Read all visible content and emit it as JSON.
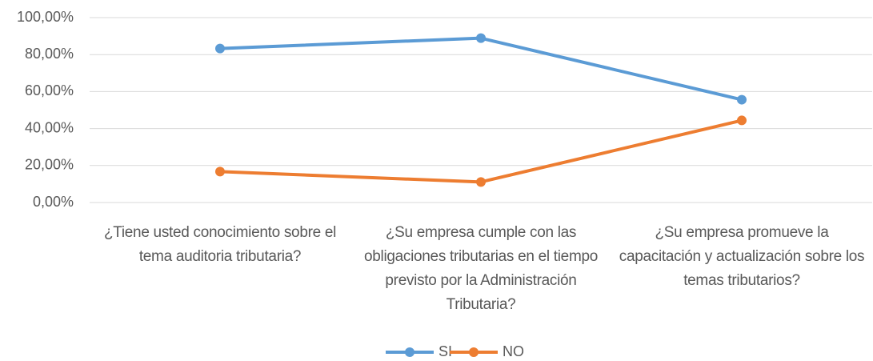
{
  "chart_data": {
    "type": "line",
    "categories": [
      "¿Tiene usted conocimiento sobre el tema auditoria tributaria?",
      "¿Su empresa cumple con las obligaciones tributarias en el tiempo previsto por la Administración Tributaria?",
      "¿Su empresa promueve la capacitación y actualización sobre los temas tributarios?"
    ],
    "series": [
      {
        "name": "SI",
        "color": "#5b9bd5",
        "values": [
          83.3,
          88.9,
          55.6
        ]
      },
      {
        "name": "NO",
        "color": "#ed7d31",
        "values": [
          16.7,
          11.1,
          44.4
        ]
      }
    ],
    "ylim": [
      0,
      100
    ],
    "yticks": [
      {
        "value": 0,
        "label": "0,00%"
      },
      {
        "value": 20,
        "label": "20,00%"
      },
      {
        "value": 40,
        "label": "40,00%"
      },
      {
        "value": 60,
        "label": "60,00%"
      },
      {
        "value": 80,
        "label": "80,00%"
      },
      {
        "value": 100,
        "label": "100,00%"
      }
    ],
    "grid": true,
    "legend": "bottom"
  }
}
